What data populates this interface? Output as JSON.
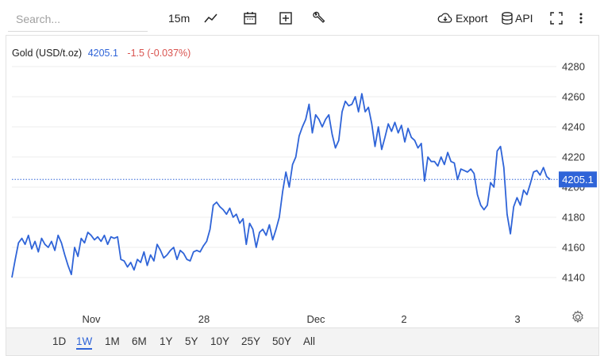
{
  "toolbar": {
    "search_placeholder": "Search...",
    "interval": "15m",
    "export_label": "Export",
    "api_label": "API"
  },
  "legend": {
    "symbol": "Gold (USD/t.oz)",
    "last": "4205.1",
    "change": "-1.5 (-0.037%)"
  },
  "colors": {
    "line": "#2f64d8",
    "change_negative": "#d9534f"
  },
  "ranges": [
    {
      "label": "1D",
      "active": false
    },
    {
      "label": "1W",
      "active": true
    },
    {
      "label": "1M",
      "active": false
    },
    {
      "label": "6M",
      "active": false
    },
    {
      "label": "1Y",
      "active": false
    },
    {
      "label": "5Y",
      "active": false
    },
    {
      "label": "10Y",
      "active": false
    },
    {
      "label": "25Y",
      "active": false
    },
    {
      "label": "50Y",
      "active": false
    },
    {
      "label": "All",
      "active": false
    }
  ],
  "chart_data": {
    "type": "line",
    "title": "",
    "xlabel": "",
    "ylabel": "",
    "ylim": [
      4120,
      4290
    ],
    "y_ticks": [
      4140,
      4160,
      4180,
      4200,
      4220,
      4240,
      4260,
      4280
    ],
    "x_ticks": [
      "Nov",
      "28",
      "Dec",
      "2",
      "3"
    ],
    "last_value": 4205.1,
    "grid": true,
    "series": [
      {
        "values": [
          4140,
          4152,
          4163,
          4166,
          4162,
          4168,
          4159,
          4164,
          4157,
          4166,
          4162,
          4160,
          4164,
          4158,
          4168,
          4163,
          4155,
          4148,
          4142,
          4160,
          4154,
          4166,
          4163,
          4170,
          4168,
          4165,
          4167,
          4164,
          4168,
          4162,
          4167,
          4166,
          4167,
          4152,
          4151,
          4147,
          4150,
          4145,
          4152,
          4150,
          4157,
          4148,
          4155,
          4151,
          4162,
          4158,
          4153,
          4155,
          4158,
          4160,
          4152,
          4158,
          4156,
          4152,
          4151,
          4157,
          4158,
          4157,
          4161,
          4164,
          4172,
          4188,
          4190,
          4187,
          4185,
          4182,
          4186,
          4180,
          4182,
          4176,
          4179,
          4162,
          4176,
          4172,
          4160,
          4170,
          4172,
          4168,
          4175,
          4165,
          4172,
          4180,
          4197,
          4210,
          4200,
          4215,
          4220,
          4234,
          4240,
          4245,
          4255,
          4236,
          4248,
          4245,
          4240,
          4245,
          4248,
          4235,
          4226,
          4231,
          4250,
          4257,
          4254,
          4255,
          4260,
          4250,
          4262,
          4250,
          4253,
          4242,
          4227,
          4240,
          4225,
          4233,
          4242,
          4237,
          4243,
          4236,
          4241,
          4230,
          4239,
          4233,
          4231,
          4226,
          4229,
          4204,
          4220,
          4217,
          4217,
          4214,
          4220,
          4215,
          4223,
          4217,
          4216,
          4205,
          4212,
          4211,
          4210,
          4212,
          4209,
          4195,
          4188,
          4185,
          4188,
          4203,
          4200,
          4224,
          4227,
          4213,
          4182,
          4169,
          4187,
          4193,
          4188,
          4198,
          4195,
          4202,
          4210,
          4211,
          4208,
          4213,
          4207,
          4205.1
        ]
      }
    ]
  }
}
